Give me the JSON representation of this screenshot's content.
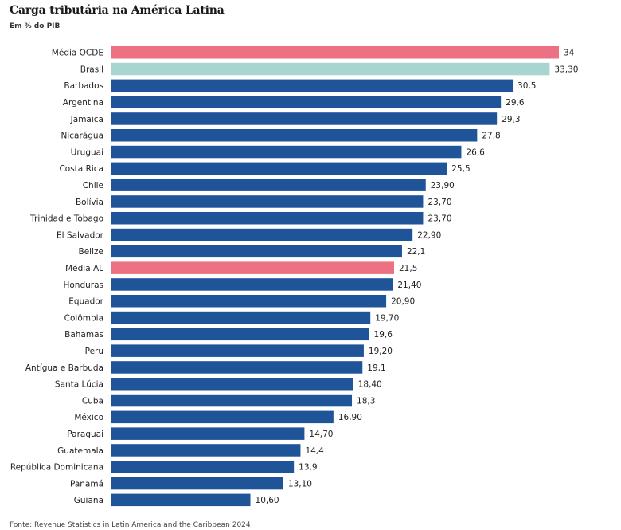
{
  "header": {
    "title": "Carga tributária na América Latina",
    "subtitle": "Em % do PIB"
  },
  "footer": {
    "source": "Fonte: Revenue Statistics in Latin America and the Caribbean 2024"
  },
  "colors": {
    "bar": "#1f5499",
    "highlight_average": "#ec7182",
    "highlight_brazil": "#a8d5d0"
  },
  "chart_data": {
    "type": "bar",
    "orientation": "horizontal",
    "title": "Carga tributária na América Latina",
    "subtitle": "Em % do PIB",
    "xlim": [
      0,
      34
    ],
    "grid": false,
    "categories": [
      "Média OCDE",
      "Brasil",
      "Barbados",
      "Argentina",
      "Jamaica",
      "Nicarágua",
      "Uruguai",
      "Costa Rica",
      "Chile",
      "Bolívia",
      "Trinidad e Tobago",
      "El Salvador",
      "Belize",
      "Média AL",
      "Honduras",
      "Equador",
      "Colômbia",
      "Bahamas",
      "Peru",
      "Antígua e Barbuda",
      "Santa Lúcia",
      "Cuba",
      "México",
      "Paraguai",
      "Guatemala",
      "República Dominicana",
      "Panamá",
      "Guiana"
    ],
    "values": [
      34,
      33.3,
      30.5,
      29.6,
      29.3,
      27.8,
      26.6,
      25.5,
      23.9,
      23.7,
      23.7,
      22.9,
      22.1,
      21.5,
      21.4,
      20.9,
      19.7,
      19.6,
      19.2,
      19.1,
      18.4,
      18.3,
      16.9,
      14.7,
      14.4,
      13.9,
      13.1,
      10.6
    ],
    "value_labels": [
      "34",
      "33,30",
      "30,5",
      "29,6",
      "29,3",
      "27,8",
      "26,6",
      "25,5",
      "23,90",
      "23,70",
      "23,70",
      "22,90",
      "22,1",
      "21,5",
      "21,40",
      "20,90",
      "19,70",
      "19,6",
      "19,20",
      "19,1",
      "18,40",
      "18,3",
      "16,90",
      "14,70",
      "14,4",
      "13,9",
      "13,10",
      "10,60"
    ],
    "bar_colors": [
      "#ec7182",
      "#a8d5d0",
      "#1f5499",
      "#1f5499",
      "#1f5499",
      "#1f5499",
      "#1f5499",
      "#1f5499",
      "#1f5499",
      "#1f5499",
      "#1f5499",
      "#1f5499",
      "#1f5499",
      "#ec7182",
      "#1f5499",
      "#1f5499",
      "#1f5499",
      "#1f5499",
      "#1f5499",
      "#1f5499",
      "#1f5499",
      "#1f5499",
      "#1f5499",
      "#1f5499",
      "#1f5499",
      "#1f5499",
      "#1f5499",
      "#1f5499"
    ]
  }
}
